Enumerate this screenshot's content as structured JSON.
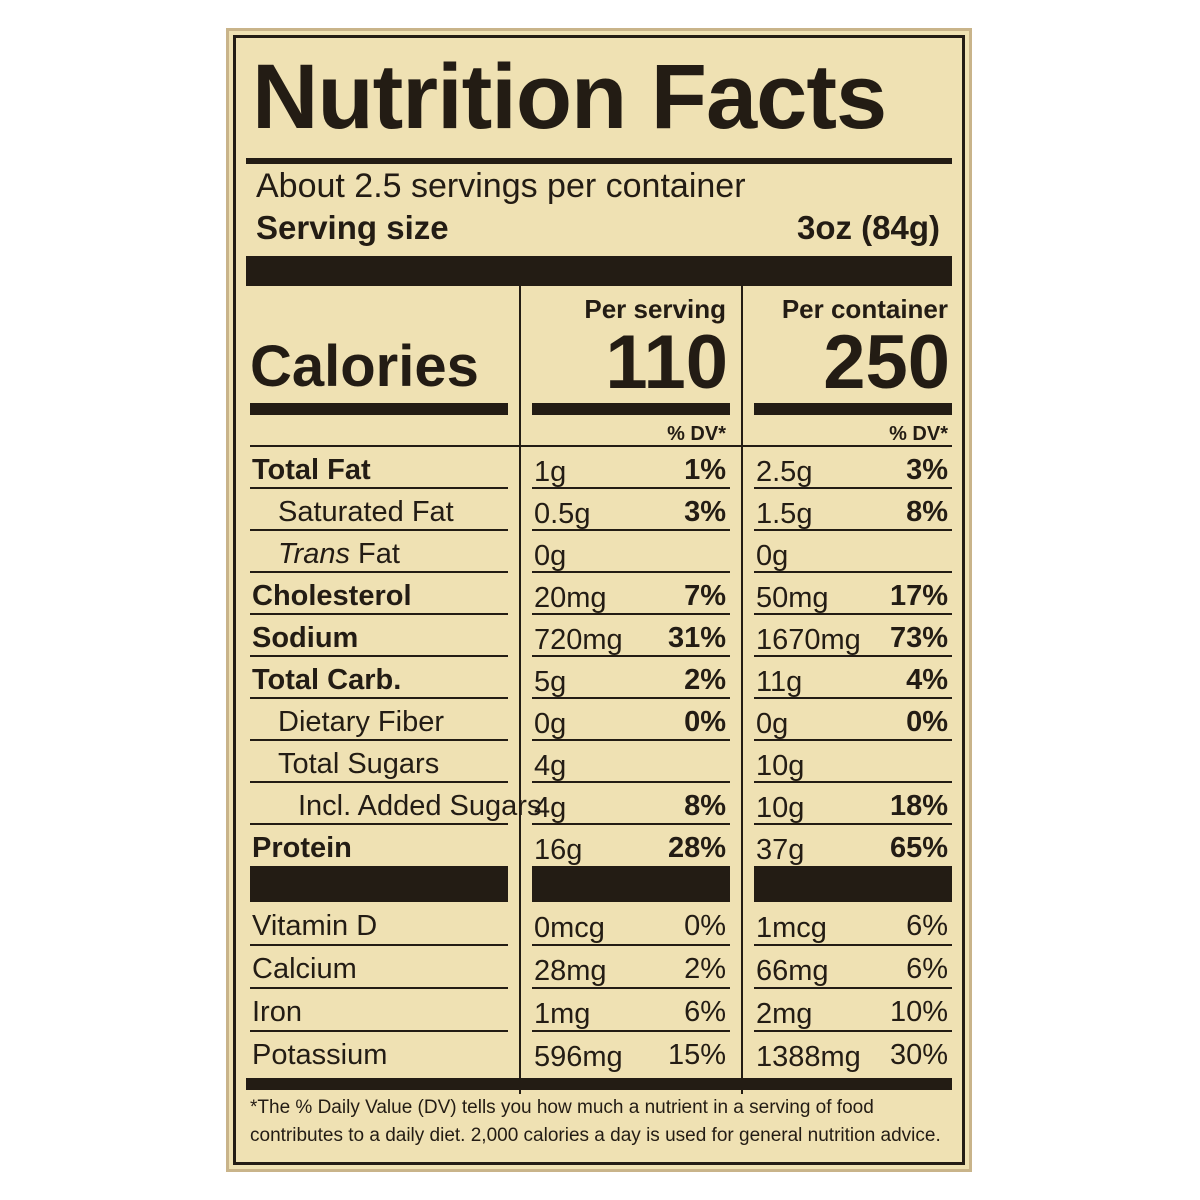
{
  "title": "Nutrition Facts",
  "servings_per_container": "About 2.5 servings per container",
  "serving_size_label": "Serving size",
  "serving_size_value": "3oz (84g)",
  "calories_label": "Calories",
  "per_serving_label": "Per serving",
  "per_container_label": "Per container",
  "calories_per_serving": "110",
  "calories_per_container": "250",
  "dv_label": "% DV*",
  "nutrients": [
    {
      "name": "Total Fat",
      "bold": true,
      "serving_amount": "1g",
      "serving_dv": "1%",
      "container_amount": "2.5g",
      "container_dv": "3%"
    },
    {
      "name": "Saturated Fat",
      "indent": 1,
      "serving_amount": "0.5g",
      "serving_dv": "3%",
      "container_amount": "1.5g",
      "container_dv": "8%"
    },
    {
      "name_italic": "Trans",
      "name": " Fat",
      "indent": 1,
      "serving_amount": "0g",
      "serving_dv": "",
      "container_amount": "0g",
      "container_dv": ""
    },
    {
      "name": "Cholesterol",
      "bold": true,
      "serving_amount": "20mg",
      "serving_dv": "7%",
      "container_amount": "50mg",
      "container_dv": "17%"
    },
    {
      "name": "Sodium",
      "bold": true,
      "serving_amount": "720mg",
      "serving_dv": "31%",
      "container_amount": "1670mg",
      "container_dv": "73%"
    },
    {
      "name": "Total Carb.",
      "bold": true,
      "serving_amount": "5g",
      "serving_dv": "2%",
      "container_amount": "11g",
      "container_dv": "4%"
    },
    {
      "name": "Dietary Fiber",
      "indent": 1,
      "serving_amount": "0g",
      "serving_dv": "0%",
      "container_amount": "0g",
      "container_dv": "0%"
    },
    {
      "name": "Total Sugars",
      "indent": 1,
      "serving_amount": "4g",
      "serving_dv": "",
      "container_amount": "10g",
      "container_dv": ""
    },
    {
      "name": "Incl. Added Sugars",
      "indent": 2,
      "serving_amount": "4g",
      "serving_dv": "8%",
      "container_amount": "10g",
      "container_dv": "18%"
    },
    {
      "name": "Protein",
      "bold": true,
      "serving_amount": "16g",
      "serving_dv": "28%",
      "container_amount": "37g",
      "container_dv": "65%"
    }
  ],
  "vitamins": [
    {
      "name": "Vitamin D",
      "serving_amount": "0mcg",
      "serving_dv": "0%",
      "container_amount": "1mcg",
      "container_dv": "6%"
    },
    {
      "name": "Calcium",
      "serving_amount": "28mg",
      "serving_dv": "2%",
      "container_amount": "66mg",
      "container_dv": "6%"
    },
    {
      "name": "Iron",
      "serving_amount": "1mg",
      "serving_dv": "6%",
      "container_amount": "2mg",
      "container_dv": "10%"
    },
    {
      "name": "Potassium",
      "serving_amount": "596mg",
      "serving_dv": "15%",
      "container_amount": "1388mg",
      "container_dv": "30%"
    }
  ],
  "footnote": "*The % Daily Value (DV) tells you how much a nutrient in a serving of food contributes to a daily diet. 2,000 calories a day is used for general nutrition advice."
}
